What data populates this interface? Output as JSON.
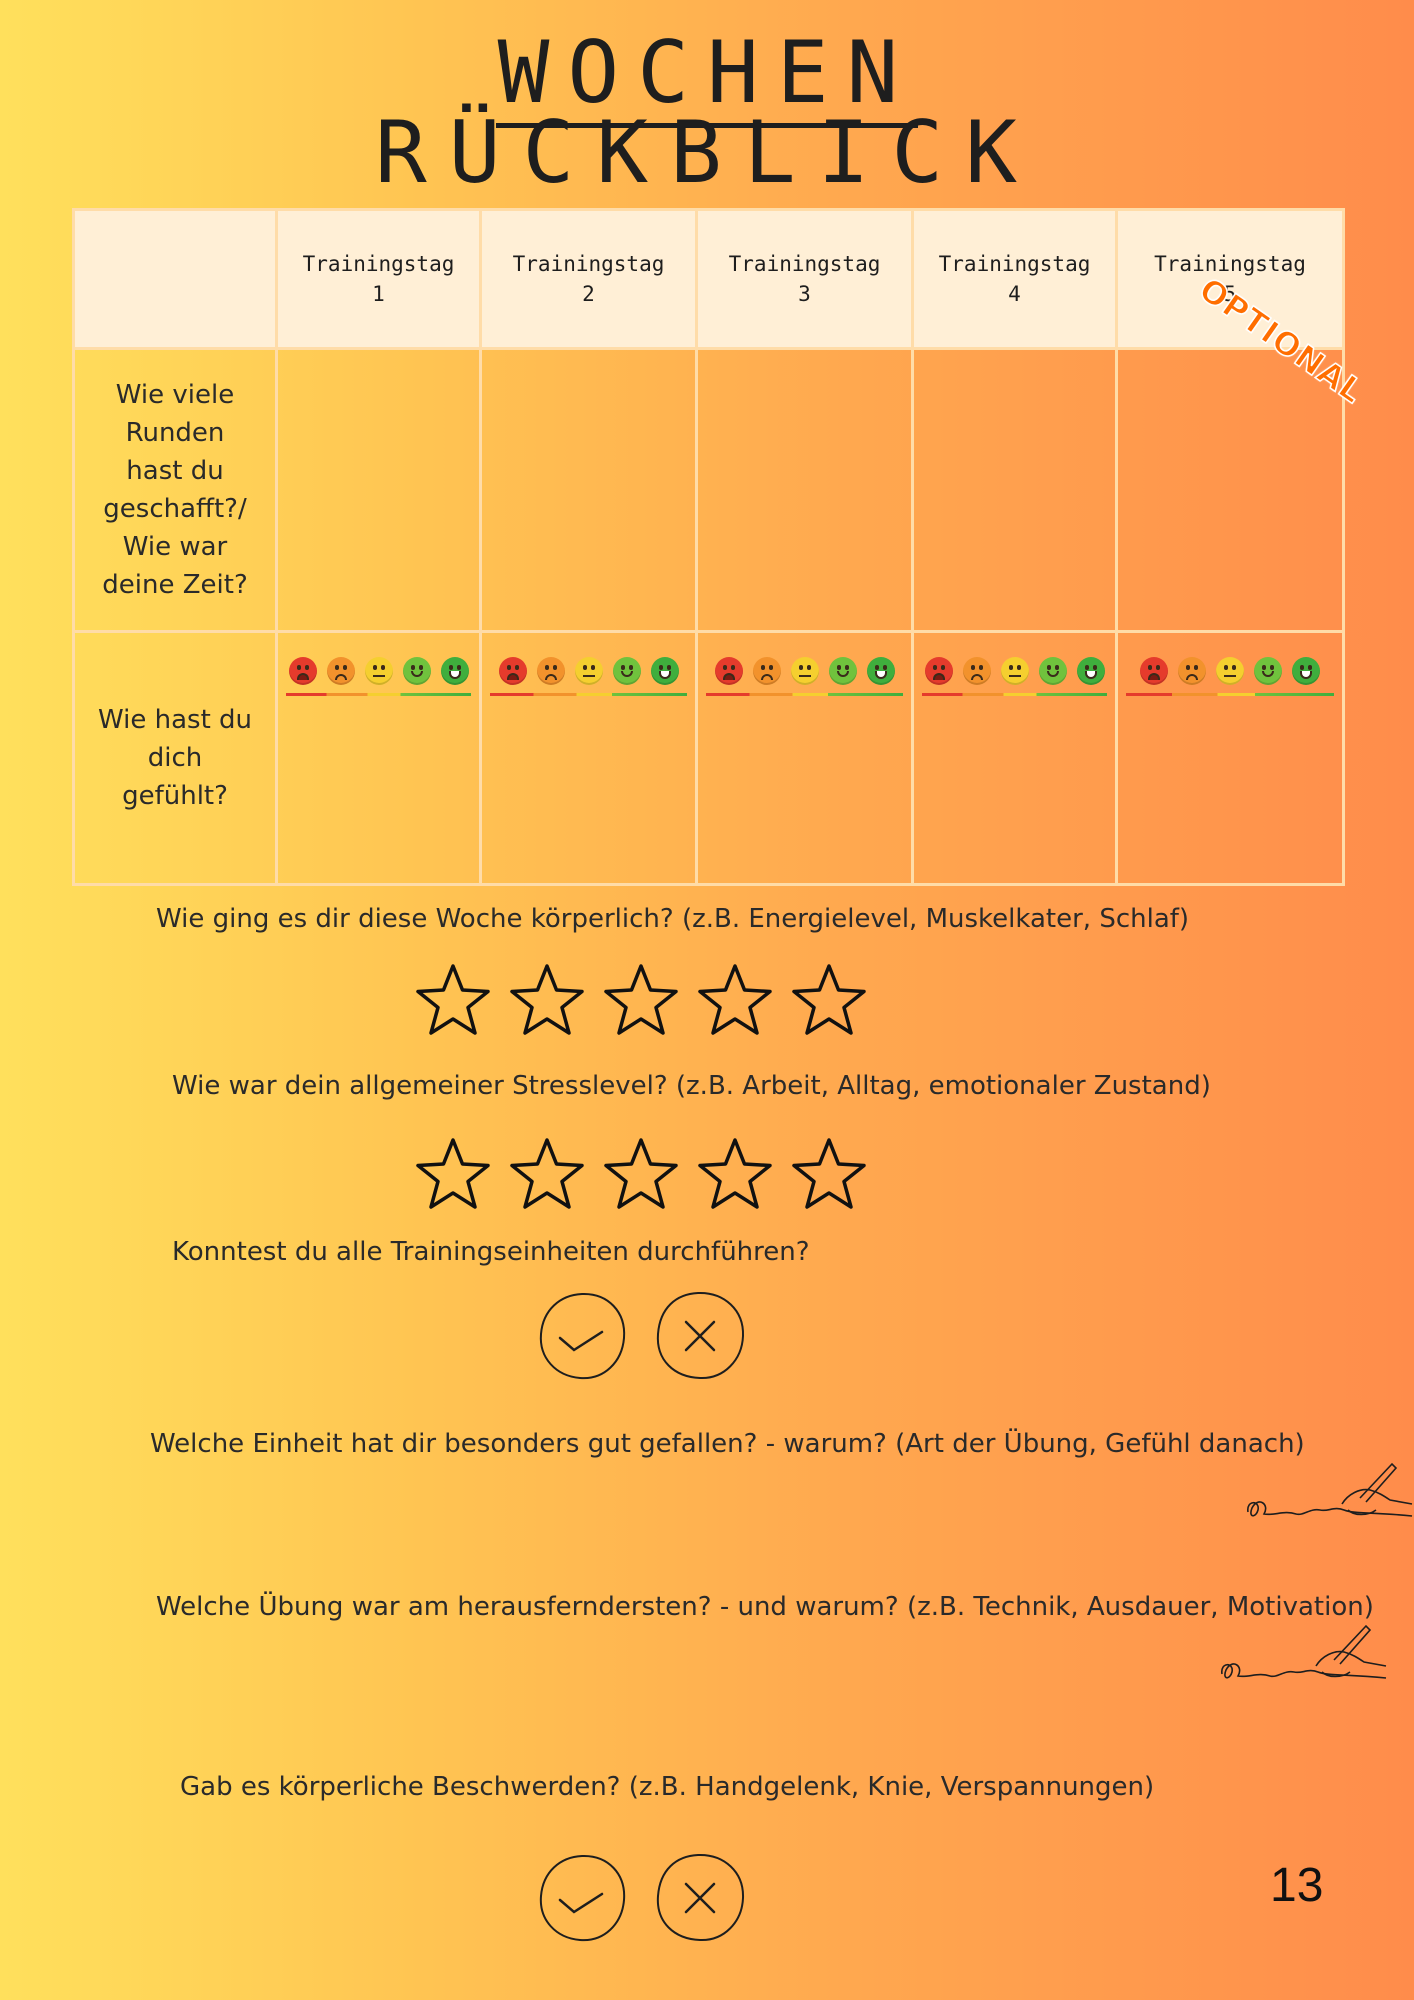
{
  "title": {
    "line1": "WOCHEN",
    "line2": "RÜCKBLICK"
  },
  "table": {
    "columns": [
      {
        "label": "Trainingstag",
        "number": "1"
      },
      {
        "label": "Trainingstag",
        "number": "2"
      },
      {
        "label": "Trainingstag",
        "number": "3"
      },
      {
        "label": "Trainingstag",
        "number": "4"
      },
      {
        "label": "Trainingstag",
        "number": "5"
      }
    ],
    "optional_stamp": "OPTIONAL",
    "rows": [
      {
        "label": "Wie viele Runden hast du geschafft?/ Wie war deine Zeit?"
      },
      {
        "label": "Wie hast du dich gefühlt?"
      }
    ],
    "mood_faces": [
      "angry-face-icon",
      "sad-face-icon",
      "neutral-face-icon",
      "smile-face-icon",
      "grin-face-icon"
    ]
  },
  "questions": {
    "physical": "Wie ging es dir diese Woche körperlich? (z.B. Energielevel, Muskelkater, Schlaf)",
    "stress": "Wie war dein allgemeiner Stresslevel?  (z.B. Arbeit, Alltag, emotionaler Zustand)",
    "completed": "Konntest du alle Trainingseinheiten durchführen?",
    "favorite": "Welche Einheit hat dir besonders gut gefallen? - warum? (Art der Übung, Gefühl danach)",
    "challenging": "Welche Übung war am herausferndersten? - und warum? (z.B. Technik, Ausdauer, Motivation)",
    "complaints": "Gab es körperliche Beschwerden? (z.B. Handgelenk, Knie, Verspannungen)"
  },
  "ratings": {
    "star_count": 5,
    "icon": "star-outline-icon"
  },
  "choices": {
    "yes_icon": "check-circle-icon",
    "no_icon": "x-circle-icon"
  },
  "page_number": "13"
}
